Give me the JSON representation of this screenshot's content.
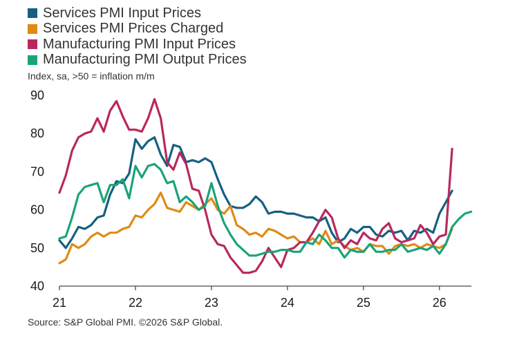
{
  "chart_data": {
    "type": "line",
    "subtitle": "Index, sa, >50 = inflation m/m",
    "source": "Source: S&P Global PMI. ©2026 S&P Global.",
    "xlim": [
      2021.0,
      2026.42
    ],
    "ylim": [
      40,
      90
    ],
    "y_ticks": [
      40,
      50,
      60,
      70,
      80,
      90
    ],
    "x_ticks": [
      {
        "value": 2021,
        "label": "21"
      },
      {
        "value": 2022,
        "label": "22"
      },
      {
        "value": 2023,
        "label": "23"
      },
      {
        "value": 2024,
        "label": "24"
      },
      {
        "value": 2025,
        "label": "25"
      },
      {
        "value": 2026,
        "label": "26"
      }
    ],
    "grid": false,
    "legend_position": "top-left",
    "x_start": 2021.0,
    "x_step": 0.0833333,
    "series": [
      {
        "name": "Services PMI Input Prices",
        "color": "#156082",
        "values": [
          52.0,
          50.0,
          52.5,
          55.5,
          55.0,
          56.0,
          58.0,
          58.5,
          64.0,
          67.5,
          67.0,
          69.5,
          78.5,
          76.0,
          78.0,
          79.0,
          74.5,
          71.5,
          77.0,
          76.5,
          72.5,
          73.0,
          72.5,
          73.5,
          72.5,
          68.0,
          64.0,
          61.0,
          60.5,
          60.5,
          61.5,
          63.5,
          62.0,
          59.0,
          59.5,
          59.5,
          59.0,
          59.0,
          58.5,
          58.0,
          58.0,
          57.0,
          58.0,
          54.0,
          51.5,
          52.5,
          55.0,
          54.0,
          55.5,
          55.5,
          53.5,
          53.0,
          54.5,
          54.0,
          54.5,
          52.0,
          54.5,
          54.0,
          55.0,
          54.0,
          59.0,
          62.0,
          65.0
        ]
      },
      {
        "name": "Services PMI Prices Charged",
        "color": "#E08A14",
        "values": [
          46.0,
          47.0,
          51.0,
          50.0,
          51.0,
          53.0,
          54.0,
          53.0,
          54.0,
          54.0,
          55.0,
          55.5,
          58.5,
          58.0,
          60.0,
          61.5,
          64.5,
          60.5,
          60.0,
          59.5,
          62.0,
          61.0,
          60.0,
          61.5,
          63.0,
          60.0,
          59.0,
          61.0,
          56.0,
          55.0,
          53.5,
          54.0,
          53.0,
          55.0,
          54.5,
          53.5,
          52.5,
          53.0,
          51.5,
          51.5,
          52.5,
          51.0,
          54.5,
          51.0,
          52.0,
          50.5,
          49.5,
          50.0,
          49.0,
          51.0,
          50.5,
          50.5,
          48.5,
          50.5,
          51.0,
          50.5,
          51.0,
          50.0,
          51.0,
          50.5,
          50.0,
          51.0,
          55.0
        ]
      },
      {
        "name": "Manufacturing PMI Input Prices",
        "color": "#B8285E",
        "values": [
          64.5,
          69.0,
          75.5,
          79.0,
          80.0,
          80.5,
          84.0,
          80.5,
          86.0,
          88.5,
          84.5,
          81.0,
          81.0,
          80.5,
          84.0,
          89.0,
          84.0,
          72.5,
          70.5,
          75.0,
          72.0,
          65.5,
          65.0,
          60.0,
          53.5,
          51.0,
          50.5,
          47.5,
          45.5,
          43.5,
          43.5,
          44.0,
          46.5,
          50.0,
          47.5,
          45.0,
          49.5,
          50.0,
          51.5,
          51.5,
          54.0,
          57.0,
          60.0,
          58.0,
          52.5,
          50.0,
          52.0,
          51.0,
          54.0,
          52.5,
          52.0,
          55.0,
          56.5,
          52.5,
          51.5,
          52.0,
          52.5,
          56.0,
          54.0,
          51.0,
          53.0,
          53.5,
          76.0
        ]
      },
      {
        "name": "Manufacturing PMI Output Prices",
        "color": "#1AA37A",
        "values": [
          52.5,
          53.0,
          58.0,
          64.0,
          66.0,
          66.5,
          67.0,
          62.0,
          66.5,
          66.5,
          68.0,
          63.0,
          71.5,
          68.5,
          71.5,
          72.0,
          70.5,
          67.0,
          67.5,
          62.0,
          63.5,
          62.0,
          60.0,
          61.0,
          67.0,
          61.0,
          56.5,
          53.5,
          51.0,
          49.5,
          48.0,
          48.0,
          48.5,
          49.0,
          49.0,
          49.5,
          49.5,
          49.0,
          49.0,
          51.5,
          51.0,
          53.5,
          52.0,
          50.0,
          50.0,
          47.5,
          49.5,
          49.0,
          49.0,
          51.0,
          49.0,
          49.0,
          49.5,
          49.5,
          51.0,
          49.0,
          49.5,
          50.0,
          49.5,
          50.5,
          48.5,
          51.0,
          55.5,
          57.5,
          59.0,
          59.5
        ]
      }
    ]
  }
}
